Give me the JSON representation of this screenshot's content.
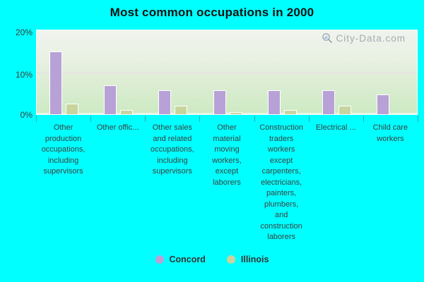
{
  "chart_data": {
    "type": "bar",
    "title": "Most common occupations in 2000",
    "watermark": "City-Data.com",
    "categories": [
      "Other\nproduction\noccupations,\nincluding\nsupervisors",
      "Other offic...",
      "Other sales\nand related\noccupations,\nincluding\nsupervisors",
      "Other\nmaterial\nmoving\nworkers,\nexcept\nlaborers",
      "Construction\ntraders\nworkers\nexcept\ncarpenters,\nelectricians,\npainters,\nplumbers,\nand\nconstruction\nlaborers",
      "Electrical ...",
      "Child care\nworkers"
    ],
    "series": [
      {
        "name": "Concord",
        "color": "#b8a1d6",
        "values": [
          14.7,
          6.8,
          5.6,
          5.6,
          5.6,
          5.6,
          4.7
        ]
      },
      {
        "name": "Illinois",
        "color": "#c8d49e",
        "values": [
          2.5,
          1.0,
          2.0,
          0.5,
          1.0,
          2.0,
          null
        ]
      }
    ],
    "ylim": [
      0,
      20
    ],
    "yticks": [
      "0%",
      "10%",
      "20%"
    ],
    "grid": true,
    "legend_position": "bottom",
    "colors": {
      "background": "#00ffff",
      "plot_gradient_top": "#f0f3ee",
      "plot_gradient_bottom": "#cdeac3",
      "gridline": "#e6dbe6",
      "axis_text": "#3c3c3c",
      "title_text": "#111111",
      "watermark_text": "#9fa8ad"
    }
  }
}
